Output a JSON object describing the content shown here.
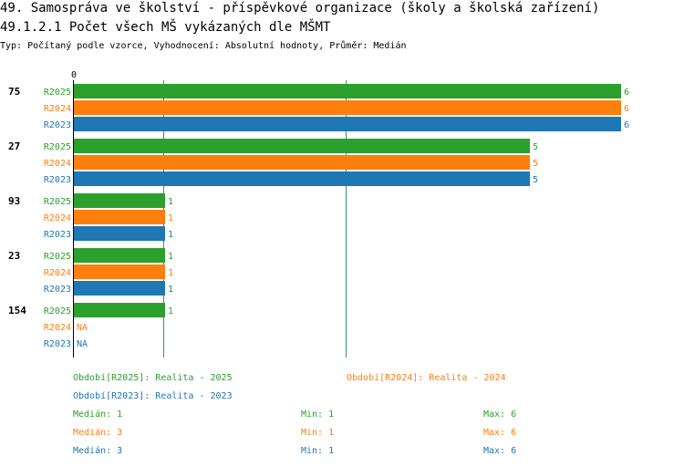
{
  "header": {
    "title_line1": "49. Samospráva ve školství - příspěvkové organizace (školy a školská zařízení)",
    "title_line2": "49.1.2.1 Počet všech MŠ vykázaných dle MŠMT",
    "subtitle": "Typ: Počítaný podle vzorce, Vyhodnocení: Absolutní hodnoty, Průměr: Medián"
  },
  "colors": {
    "R2025": "#2ca02c",
    "R2024": "#ff7f0e",
    "R2023": "#1f77b4",
    "grid": "#3c8c8c",
    "axis": "#000000"
  },
  "chart_data": {
    "type": "bar",
    "orientation": "horizontal",
    "title": "49.1.2.1 Počet všech MŠ vykázaných dle MŠMT",
    "x_tick_labels": [
      "0"
    ],
    "xlim": [
      0,
      6
    ],
    "grid": true,
    "categories": [
      "75",
      "27",
      "93",
      "23",
      "154"
    ],
    "series": [
      {
        "name": "R2025",
        "values": [
          6,
          5,
          1,
          1,
          1
        ]
      },
      {
        "name": "R2024",
        "values": [
          6,
          5,
          1,
          1,
          null
        ]
      },
      {
        "name": "R2023",
        "values": [
          6,
          5,
          1,
          1,
          null
        ]
      }
    ],
    "na_label": "NA"
  },
  "legend": {
    "items": [
      {
        "key": "R2025",
        "text": "Období[R2025]: Realita - 2025"
      },
      {
        "key": "R2024",
        "text": "Období[R2024]: Realita - 2024"
      },
      {
        "key": "R2023",
        "text": "Období[R2023]: Realita - 2023"
      }
    ]
  },
  "stats": [
    {
      "key": "R2025",
      "median": "Medián: 1",
      "min": "Min: 1",
      "max": "Max: 6"
    },
    {
      "key": "R2024",
      "median": "Medián: 3",
      "min": "Min: 1",
      "max": "Max: 6"
    },
    {
      "key": "R2023",
      "median": "Medián: 3",
      "min": "Min: 1",
      "max": "Max: 6"
    }
  ]
}
